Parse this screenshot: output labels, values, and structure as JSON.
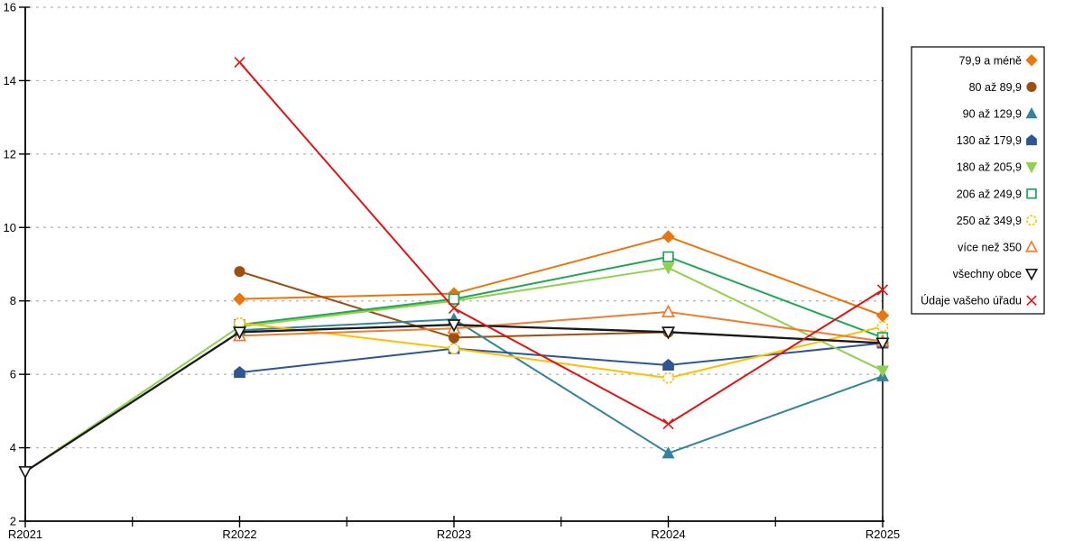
{
  "chart_data": {
    "type": "line",
    "x": [
      "R2021",
      "R2022",
      "R2023",
      "R2024",
      "R2025"
    ],
    "ylim": [
      2,
      16
    ],
    "yticks": [
      2,
      4,
      6,
      8,
      10,
      12,
      14,
      16
    ],
    "grid": "horizontal-dashed",
    "grid_color": "#b3b3b3",
    "axis_color": "#000000",
    "legend_position": "right",
    "legend_border_color": "#000000",
    "series": [
      {
        "name": "79,9 a méně",
        "color": "#E8760C",
        "marker": "diamond",
        "filled": true,
        "values": [
          null,
          8.05,
          8.2,
          9.75,
          7.6
        ]
      },
      {
        "name": "80 až 89,9",
        "color": "#9C500F",
        "marker": "circle",
        "filled": true,
        "values": [
          null,
          8.8,
          7.0,
          7.15,
          6.85
        ]
      },
      {
        "name": "90 až 129,9",
        "color": "#31849B",
        "marker": "triangle-up",
        "filled": true,
        "values": [
          null,
          7.2,
          7.5,
          3.85,
          5.95
        ]
      },
      {
        "name": "130 až 179,9",
        "color": "#2E5693",
        "marker": "pentagon",
        "filled": true,
        "values": [
          null,
          6.05,
          6.7,
          6.25,
          6.85
        ]
      },
      {
        "name": "180 až 205,9",
        "color": "#92D050",
        "marker": "triangle-down",
        "filled": true,
        "values": [
          3.35,
          7.3,
          8.0,
          8.9,
          6.1
        ]
      },
      {
        "name": "206 až 249,9",
        "color": "#21A658",
        "marker": "square",
        "filled": false,
        "values": [
          null,
          7.35,
          8.05,
          9.2,
          7.0
        ]
      },
      {
        "name": "250 až 349,9",
        "color": "#FFC000",
        "marker": "circle",
        "filled": false,
        "values": [
          null,
          7.4,
          6.7,
          5.9,
          7.3
        ]
      },
      {
        "name": "více než 350",
        "color": "#ED7D31",
        "marker": "triangle-up",
        "filled": false,
        "values": [
          null,
          7.05,
          7.25,
          7.7,
          6.9
        ]
      },
      {
        "name": "všechny obce",
        "color": "#1A1A1A",
        "marker": "triangle-down",
        "filled": false,
        "values": [
          3.35,
          7.15,
          7.35,
          7.15,
          6.85
        ]
      },
      {
        "name": "Údaje vašeho úřadu",
        "color": "#E01414",
        "marker": "x",
        "filled": false,
        "values": [
          null,
          14.5,
          7.8,
          4.65,
          8.3
        ]
      }
    ]
  }
}
